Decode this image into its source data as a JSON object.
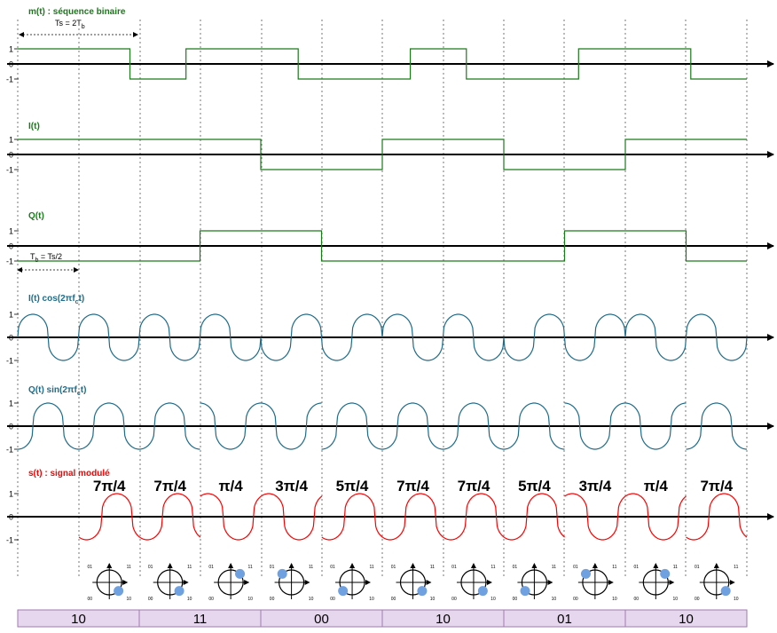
{
  "panels": {
    "m": {
      "title": "m(t) : séquence binaire",
      "levels": [
        1,
        1,
        -1,
        1,
        1,
        -1,
        -1,
        1,
        -1,
        -1,
        1,
        1,
        -1
      ]
    },
    "i": {
      "title": "I(t)",
      "levels": [
        1,
        1,
        1,
        1,
        -1,
        -1,
        1,
        1,
        -1,
        -1,
        1,
        1
      ]
    },
    "q": {
      "title": "Q(t)",
      "levels": [
        -1,
        -1,
        -1,
        1,
        1,
        -1,
        -1,
        -1,
        -1,
        1,
        1,
        -1
      ]
    },
    "icos": {
      "title_main": "I(t) cos(2πf",
      "title_sub": "c",
      "title_end": "t)"
    },
    "qsin": {
      "title_main": "Q(t) sin(2πf",
      "title_sub": "c",
      "title_end": "t)"
    },
    "s": {
      "title": "s(t) : signal modulé"
    }
  },
  "tick_labels": {
    "pos": "1",
    "zero": "0",
    "neg": "-1"
  },
  "annotations": {
    "ts_main": "Ts = 2T",
    "ts_sub": "b",
    "tb_main": "T",
    "tb_sub": "b",
    "tb_end": " = Ts/2"
  },
  "phases": [
    "7π/4",
    "7π/4",
    "π/4",
    "3π/4",
    "5π/4",
    "7π/4",
    "7π/4",
    "5π/4",
    "3π/4",
    "π/4",
    "7π/4"
  ],
  "constellation": {
    "labels": {
      "tl": "01",
      "tr": "11",
      "bl": "00",
      "br": "10"
    },
    "points": [
      "br",
      "br",
      "tr",
      "tl",
      "bl",
      "br",
      "br",
      "bl",
      "tl",
      "tr",
      "br"
    ]
  },
  "bits": [
    "10",
    "11",
    "00",
    "10",
    "01",
    "10"
  ],
  "colors": {
    "green": "#1a7a1a",
    "teal": "#1f6c8a",
    "red": "#ff0000",
    "dot": "#6fa0e0",
    "bits_bg": "#e6d6ee",
    "bits_border": "#a07ab0"
  }
}
